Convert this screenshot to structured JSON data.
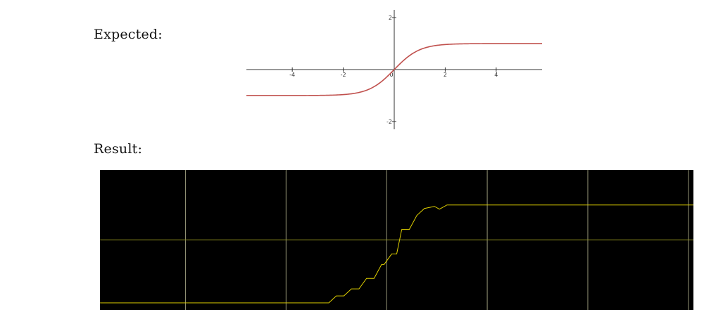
{
  "labels": {
    "expected": "Expected:",
    "result": "Result:"
  },
  "colors": {
    "expected_curve": "#c0504d",
    "expected_axis": "#333333",
    "result_background": "#000000",
    "result_curve": "#e0d000",
    "result_grid": "#c8c8a0",
    "result_midline": "#9a9a20"
  },
  "chart_data": [
    {
      "type": "line",
      "title": "",
      "xlabel": "",
      "ylabel": "",
      "xlim": [
        -5.8,
        5.8
      ],
      "ylim": [
        -2.3,
        2.3
      ],
      "xticks": [
        -4,
        -2,
        0,
        2,
        4
      ],
      "xtick_labels": [
        "-4",
        "-2",
        "0",
        "2",
        "4"
      ],
      "yticks": [
        -2,
        2
      ],
      "ytick_labels": [
        "-2",
        "2"
      ],
      "grid": false,
      "function": "tanh",
      "series": [
        {
          "name": "",
          "x": [
            -5.8,
            -5,
            -4,
            -3,
            -2.5,
            -2,
            -1.5,
            -1,
            -0.5,
            0,
            0.5,
            1,
            1.5,
            2,
            2.5,
            3,
            4,
            5,
            5.8
          ],
          "y": [
            -1,
            -1,
            -0.999,
            -0.995,
            -0.987,
            -0.964,
            -0.905,
            -0.762,
            -0.462,
            0,
            0.462,
            0.762,
            0.905,
            0.964,
            0.987,
            0.995,
            0.999,
            1,
            1
          ]
        }
      ]
    },
    {
      "type": "line",
      "title": "",
      "xlabel": "",
      "ylabel": "",
      "xlim": [
        -5.7,
        6.1
      ],
      "ylim": [
        -1.0,
        1.0
      ],
      "grid": true,
      "grid_x": [
        -4,
        -2,
        0,
        2,
        4,
        6
      ],
      "grid_y": [
        0
      ],
      "series": [
        {
          "name": "",
          "x": [
            -5.7,
            -1.15,
            -1.0,
            -0.85,
            -0.7,
            -0.55,
            -0.4,
            -0.25,
            -0.1,
            -0.05,
            0.1,
            0.2,
            0.3,
            0.45,
            0.6,
            0.75,
            0.95,
            1.05,
            1.2,
            6.1
          ],
          "y": [
            -0.9,
            -0.9,
            -0.8,
            -0.8,
            -0.7,
            -0.7,
            -0.55,
            -0.55,
            -0.35,
            -0.35,
            -0.2,
            -0.2,
            0.15,
            0.15,
            0.35,
            0.45,
            0.48,
            0.44,
            0.5,
            0.5
          ]
        }
      ]
    }
  ]
}
